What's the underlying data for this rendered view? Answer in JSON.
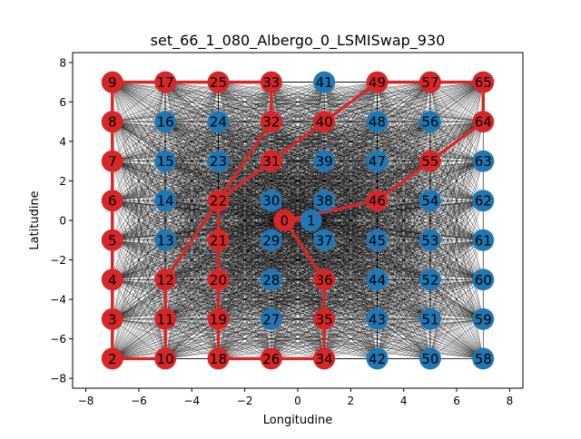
{
  "chart_data": {
    "type": "scatter",
    "title": "set_66_1_080_Albergo_0_LSMISwap_930",
    "xlabel": "Longitudine",
    "ylabel": "Latitudine",
    "xlim": [
      -8.5,
      8.5
    ],
    "ylim": [
      -8.5,
      8.5
    ],
    "xticks": [
      -8,
      -6,
      -4,
      -2,
      0,
      2,
      4,
      6,
      8
    ],
    "yticks": [
      -8,
      -6,
      -4,
      -2,
      0,
      2,
      4,
      6,
      8
    ],
    "grid": false,
    "colors": {
      "route": "#d62728",
      "customer": "#1f77b4",
      "edges": "#000000"
    },
    "nodes": [
      {
        "id": "0",
        "x": -0.5,
        "y": 0,
        "route": true
      },
      {
        "id": "1",
        "x": 0.5,
        "y": 0,
        "route": false
      },
      {
        "id": "2",
        "x": -7,
        "y": -7,
        "route": true
      },
      {
        "id": "3",
        "x": -7,
        "y": -5,
        "route": true
      },
      {
        "id": "4",
        "x": -7,
        "y": -3,
        "route": true
      },
      {
        "id": "5",
        "x": -7,
        "y": -1,
        "route": true
      },
      {
        "id": "6",
        "x": -7,
        "y": 1,
        "route": true
      },
      {
        "id": "7",
        "x": -7,
        "y": 3,
        "route": true
      },
      {
        "id": "8",
        "x": -7,
        "y": 5,
        "route": true
      },
      {
        "id": "9",
        "x": -7,
        "y": 7,
        "route": true
      },
      {
        "id": "10",
        "x": -5,
        "y": -7,
        "route": true
      },
      {
        "id": "11",
        "x": -5,
        "y": -5,
        "route": true
      },
      {
        "id": "12",
        "x": -5,
        "y": -3,
        "route": true
      },
      {
        "id": "13",
        "x": -5,
        "y": -1,
        "route": false
      },
      {
        "id": "14",
        "x": -5,
        "y": 1,
        "route": false
      },
      {
        "id": "15",
        "x": -5,
        "y": 3,
        "route": false
      },
      {
        "id": "16",
        "x": -5,
        "y": 5,
        "route": false
      },
      {
        "id": "17",
        "x": -5,
        "y": 7,
        "route": true
      },
      {
        "id": "18",
        "x": -3,
        "y": -7,
        "route": true
      },
      {
        "id": "19",
        "x": -3,
        "y": -5,
        "route": true
      },
      {
        "id": "20",
        "x": -3,
        "y": -3,
        "route": true
      },
      {
        "id": "21",
        "x": -3,
        "y": -1,
        "route": true
      },
      {
        "id": "22",
        "x": -3,
        "y": 1,
        "route": true
      },
      {
        "id": "23",
        "x": -3,
        "y": 3,
        "route": false
      },
      {
        "id": "24",
        "x": -3,
        "y": 5,
        "route": false
      },
      {
        "id": "25",
        "x": -3,
        "y": 7,
        "route": true
      },
      {
        "id": "26",
        "x": -1,
        "y": -7,
        "route": true
      },
      {
        "id": "27",
        "x": -1,
        "y": -5,
        "route": false
      },
      {
        "id": "28",
        "x": -1,
        "y": -3,
        "route": false
      },
      {
        "id": "29",
        "x": -1,
        "y": -1,
        "route": false
      },
      {
        "id": "30",
        "x": -1,
        "y": 1,
        "route": false
      },
      {
        "id": "31",
        "x": -1,
        "y": 3,
        "route": true
      },
      {
        "id": "32",
        "x": -1,
        "y": 5,
        "route": true
      },
      {
        "id": "33",
        "x": -1,
        "y": 7,
        "route": true
      },
      {
        "id": "34",
        "x": 1,
        "y": -7,
        "route": true
      },
      {
        "id": "35",
        "x": 1,
        "y": -5,
        "route": true
      },
      {
        "id": "36",
        "x": 1,
        "y": -3,
        "route": true
      },
      {
        "id": "37",
        "x": 1,
        "y": -1,
        "route": false
      },
      {
        "id": "38",
        "x": 1,
        "y": 1,
        "route": false
      },
      {
        "id": "39",
        "x": 1,
        "y": 3,
        "route": false
      },
      {
        "id": "40",
        "x": 1,
        "y": 5,
        "route": true
      },
      {
        "id": "41",
        "x": 1,
        "y": 7,
        "route": false
      },
      {
        "id": "42",
        "x": 3,
        "y": -7,
        "route": false
      },
      {
        "id": "43",
        "x": 3,
        "y": -5,
        "route": false
      },
      {
        "id": "44",
        "x": 3,
        "y": -3,
        "route": false
      },
      {
        "id": "45",
        "x": 3,
        "y": -1,
        "route": false
      },
      {
        "id": "46",
        "x": 3,
        "y": 1,
        "route": true
      },
      {
        "id": "47",
        "x": 3,
        "y": 3,
        "route": false
      },
      {
        "id": "48",
        "x": 3,
        "y": 5,
        "route": false
      },
      {
        "id": "49",
        "x": 3,
        "y": 7,
        "route": true
      },
      {
        "id": "50",
        "x": 5,
        "y": -7,
        "route": false
      },
      {
        "id": "51",
        "x": 5,
        "y": -5,
        "route": false
      },
      {
        "id": "52",
        "x": 5,
        "y": -3,
        "route": false
      },
      {
        "id": "53",
        "x": 5,
        "y": -1,
        "route": false
      },
      {
        "id": "54",
        "x": 5,
        "y": 1,
        "route": false
      },
      {
        "id": "55",
        "x": 5,
        "y": 3,
        "route": true
      },
      {
        "id": "56",
        "x": 5,
        "y": 5,
        "route": false
      },
      {
        "id": "57",
        "x": 5,
        "y": 7,
        "route": true
      },
      {
        "id": "58",
        "x": 7,
        "y": -7,
        "route": false
      },
      {
        "id": "59",
        "x": 7,
        "y": -5,
        "route": false
      },
      {
        "id": "60",
        "x": 7,
        "y": -3,
        "route": false
      },
      {
        "id": "61",
        "x": 7,
        "y": -1,
        "route": false
      },
      {
        "id": "62",
        "x": 7,
        "y": 1,
        "route": false
      },
      {
        "id": "63",
        "x": 7,
        "y": 3,
        "route": false
      },
      {
        "id": "64",
        "x": 7,
        "y": 5,
        "route": true
      },
      {
        "id": "65",
        "x": 7,
        "y": 7,
        "route": true
      }
    ],
    "route_path": [
      "0",
      "46",
      "55",
      "64",
      "65",
      "57",
      "49",
      "40",
      "31",
      "22",
      "21",
      "20",
      "19",
      "18",
      "26",
      "34",
      "35",
      "36",
      "0"
    ],
    "route_path_2": [
      "0",
      "1"
    ],
    "route_path_3": [
      "12",
      "11",
      "10",
      "2",
      "3",
      "4",
      "5",
      "6",
      "7",
      "8",
      "9",
      "17",
      "25",
      "33",
      "32",
      "22",
      "12"
    ]
  }
}
